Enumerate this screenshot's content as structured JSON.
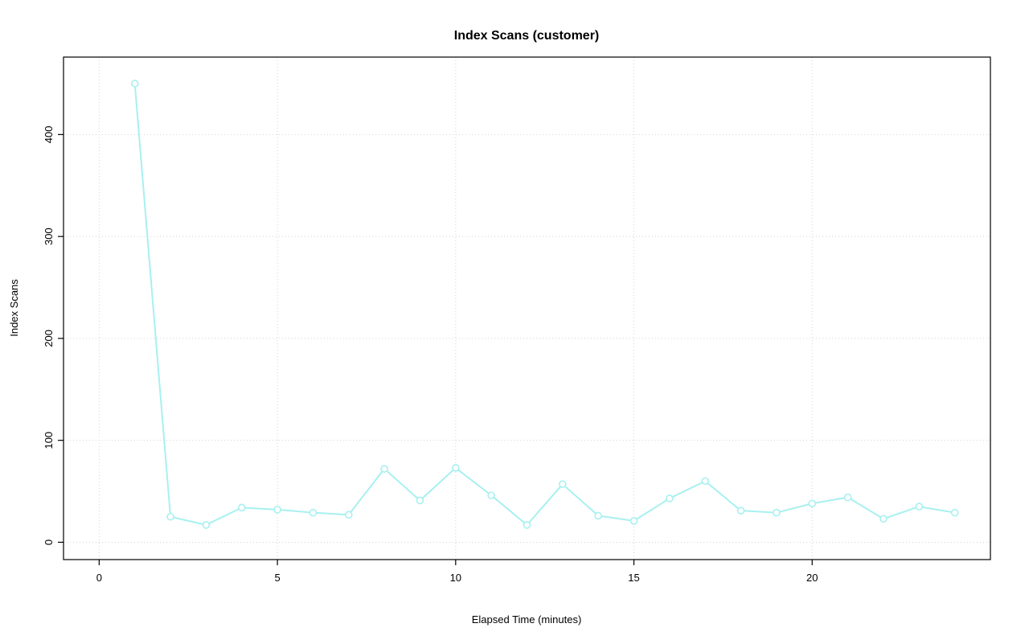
{
  "chart_data": {
    "type": "line",
    "title": "Index Scans (customer)",
    "xlabel": "Elapsed Time (minutes)",
    "ylabel": "Index Scans",
    "x": [
      1,
      2,
      3,
      4,
      5,
      6,
      7,
      8,
      9,
      10,
      11,
      12,
      13,
      14,
      15,
      16,
      17,
      18,
      19,
      20,
      21,
      22,
      23,
      24
    ],
    "values": [
      450,
      25,
      17,
      34,
      32,
      29,
      27,
      72,
      41,
      73,
      46,
      17,
      57,
      26,
      21,
      43,
      60,
      31,
      29,
      38,
      44,
      23,
      35,
      29
    ],
    "xticks": [
      0,
      5,
      10,
      15,
      20
    ],
    "yticks": [
      0,
      100,
      200,
      300,
      400
    ],
    "xlim": [
      -1,
      25
    ],
    "ylim": [
      -17,
      476
    ],
    "grid": true,
    "legend_position": "none",
    "marker": "open-circle",
    "series_color": "#A8F0F0",
    "grid_color": "#D4D4D4",
    "axis_color": "#000000",
    "background_color": "#FFFFFF"
  }
}
